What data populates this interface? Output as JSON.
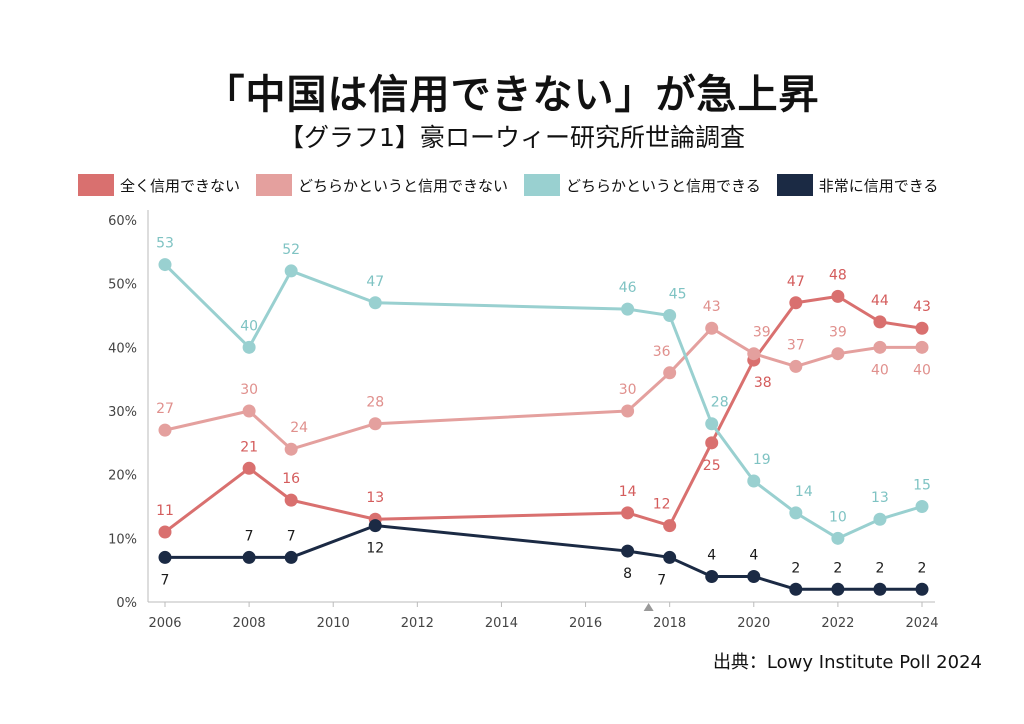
{
  "header": {
    "title": "「中国は信用できない」が急上昇",
    "subtitle": "【グラフ1】豪ローウィー研究所世論調査"
  },
  "source": "出典：Lowy Institute Poll 2024",
  "chart_data": {
    "type": "line",
    "title": "「中国は信用できない」が急上昇",
    "subtitle": "【グラフ1】豪ローウィー研究所世論調査",
    "xlabel": "",
    "ylabel": "",
    "xlim": [
      2006,
      2024
    ],
    "ylim": [
      0,
      60
    ],
    "x_ticks": [
      "2006",
      "2008",
      "2010",
      "2012",
      "2014",
      "2016",
      "2018",
      "2020",
      "2022",
      "2024"
    ],
    "y_ticks": [
      "0%",
      "10%",
      "20%",
      "30%",
      "40%",
      "50%",
      "60%"
    ],
    "grid": false,
    "legend_position": "top",
    "series": [
      {
        "name": "全く信用できない",
        "color": "#d9706f",
        "label_color": "#d45c5c",
        "points": [
          {
            "x": 2006,
            "y": 11,
            "label": "11",
            "pos": "above"
          },
          {
            "x": 2008,
            "y": 21,
            "label": "21",
            "pos": "above"
          },
          {
            "x": 2009,
            "y": 16,
            "label": "16",
            "pos": "above"
          },
          {
            "x": 2011,
            "y": 13,
            "label": "13",
            "pos": "above"
          },
          {
            "x": 2017,
            "y": 14,
            "label": "14",
            "pos": "above"
          },
          {
            "x": 2018,
            "y": 12,
            "label": "12",
            "pos": "above-left"
          },
          {
            "x": 2019,
            "y": 25,
            "label": "25",
            "pos": "below"
          },
          {
            "x": 2020,
            "y": 38,
            "label": "38",
            "pos": "below-right"
          },
          {
            "x": 2021,
            "y": 47,
            "label": "47",
            "pos": "above"
          },
          {
            "x": 2022,
            "y": 48,
            "label": "48",
            "pos": "above"
          },
          {
            "x": 2023,
            "y": 44,
            "label": "44",
            "pos": "above"
          },
          {
            "x": 2024,
            "y": 43,
            "label": "43",
            "pos": "above"
          }
        ]
      },
      {
        "name": "どちらかというと信用できない",
        "color": "#e4a09e",
        "label_color": "#e0908d",
        "points": [
          {
            "x": 2006,
            "y": 27,
            "label": "27",
            "pos": "above"
          },
          {
            "x": 2008,
            "y": 30,
            "label": "30",
            "pos": "above"
          },
          {
            "x": 2009,
            "y": 24,
            "label": "24",
            "pos": "above-right"
          },
          {
            "x": 2011,
            "y": 28,
            "label": "28",
            "pos": "above"
          },
          {
            "x": 2017,
            "y": 30,
            "label": "30",
            "pos": "above"
          },
          {
            "x": 2018,
            "y": 36,
            "label": "36",
            "pos": "above-left"
          },
          {
            "x": 2019,
            "y": 43,
            "label": "43",
            "pos": "above"
          },
          {
            "x": 2020,
            "y": 39,
            "label": "39",
            "pos": "above-right"
          },
          {
            "x": 2021,
            "y": 37,
            "label": "37",
            "pos": "above"
          },
          {
            "x": 2022,
            "y": 39,
            "label": "39",
            "pos": "above"
          },
          {
            "x": 2023,
            "y": 40,
            "label": "40",
            "pos": "below"
          },
          {
            "x": 2024,
            "y": 40,
            "label": "40",
            "pos": "below"
          }
        ]
      },
      {
        "name": "どちらかというと信用できる",
        "color": "#99d0d0",
        "label_color": "#7fc3c3",
        "points": [
          {
            "x": 2006,
            "y": 53,
            "label": "53",
            "pos": "above"
          },
          {
            "x": 2008,
            "y": 40,
            "label": "40",
            "pos": "above"
          },
          {
            "x": 2009,
            "y": 52,
            "label": "52",
            "pos": "above"
          },
          {
            "x": 2011,
            "y": 47,
            "label": "47",
            "pos": "above"
          },
          {
            "x": 2017,
            "y": 46,
            "label": "46",
            "pos": "above"
          },
          {
            "x": 2018,
            "y": 45,
            "label": "45",
            "pos": "above-right"
          },
          {
            "x": 2019,
            "y": 28,
            "label": "28",
            "pos": "above-right"
          },
          {
            "x": 2020,
            "y": 19,
            "label": "19",
            "pos": "above-right"
          },
          {
            "x": 2021,
            "y": 14,
            "label": "14",
            "pos": "above-right"
          },
          {
            "x": 2022,
            "y": 10,
            "label": "10",
            "pos": "above"
          },
          {
            "x": 2023,
            "y": 13,
            "label": "13",
            "pos": "above"
          },
          {
            "x": 2024,
            "y": 15,
            "label": "15",
            "pos": "above"
          }
        ]
      },
      {
        "name": "非常に信用できる",
        "color": "#1b2a44",
        "label_color": "#1b1b1b",
        "points": [
          {
            "x": 2006,
            "y": 7,
            "label": "7",
            "pos": "below"
          },
          {
            "x": 2008,
            "y": 7,
            "label": "7",
            "pos": "above"
          },
          {
            "x": 2009,
            "y": 7,
            "label": "7",
            "pos": "above"
          },
          {
            "x": 2011,
            "y": 12,
            "label": "12",
            "pos": "below"
          },
          {
            "x": 2017,
            "y": 8,
            "label": "8",
            "pos": "below"
          },
          {
            "x": 2018,
            "y": 7,
            "label": "7",
            "pos": "below-left"
          },
          {
            "x": 2019,
            "y": 4,
            "label": "4",
            "pos": "above"
          },
          {
            "x": 2020,
            "y": 4,
            "label": "4",
            "pos": "above"
          },
          {
            "x": 2021,
            "y": 2,
            "label": "2",
            "pos": "above"
          },
          {
            "x": 2022,
            "y": 2,
            "label": "2",
            "pos": "above"
          },
          {
            "x": 2023,
            "y": 2,
            "label": "2",
            "pos": "above"
          },
          {
            "x": 2024,
            "y": 2,
            "label": "2",
            "pos": "above"
          }
        ]
      }
    ],
    "marker": {
      "x": 2017.5
    }
  }
}
